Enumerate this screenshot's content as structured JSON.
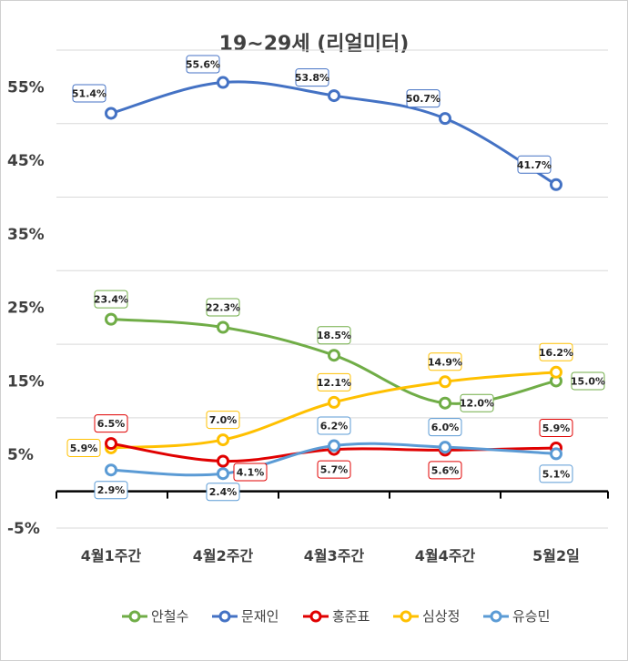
{
  "chart_data": {
    "type": "line",
    "title": "19~29세 (리얼미터)",
    "categories": [
      "4월1주간",
      "4월2주간",
      "4월3주간",
      "4월4주간",
      "5월2일"
    ],
    "y_ticks": [
      "55%",
      "45%",
      "35%",
      "25%",
      "15%",
      "5%",
      "-5%"
    ],
    "ylim": [
      -5,
      60
    ],
    "grid": true,
    "legend_position": "bottom",
    "series": [
      {
        "name": "안철수",
        "color": "#70AD47",
        "values": [
          23.4,
          22.3,
          18.5,
          12.0,
          15.0
        ],
        "labels": [
          "23.4%",
          "22.3%",
          "18.5%",
          "12.0%",
          "15.0%"
        ]
      },
      {
        "name": "문재인",
        "color": "#4472C4",
        "values": [
          51.4,
          55.6,
          53.8,
          50.7,
          41.7
        ],
        "labels": [
          "51.4%",
          "55.6%",
          "53.8%",
          "50.7%",
          "41.7%"
        ]
      },
      {
        "name": "홍준표",
        "color": "#E00000",
        "values": [
          6.5,
          4.1,
          5.7,
          5.6,
          5.9
        ],
        "labels": [
          "6.5%",
          "4.1%",
          "5.7%",
          "5.6%",
          "5.9%"
        ]
      },
      {
        "name": "심상정",
        "color": "#FFC000",
        "values": [
          5.9,
          7.0,
          12.1,
          14.9,
          16.2
        ],
        "labels": [
          "5.9%",
          "7.0%",
          "12.1%",
          "14.9%",
          "16.2%"
        ]
      },
      {
        "name": "유승민",
        "color": "#5B9BD5",
        "values": [
          2.9,
          2.4,
          6.2,
          6.0,
          5.1
        ],
        "labels": [
          "2.9%",
          "2.4%",
          "6.2%",
          "6.0%",
          "5.1%"
        ]
      }
    ]
  }
}
